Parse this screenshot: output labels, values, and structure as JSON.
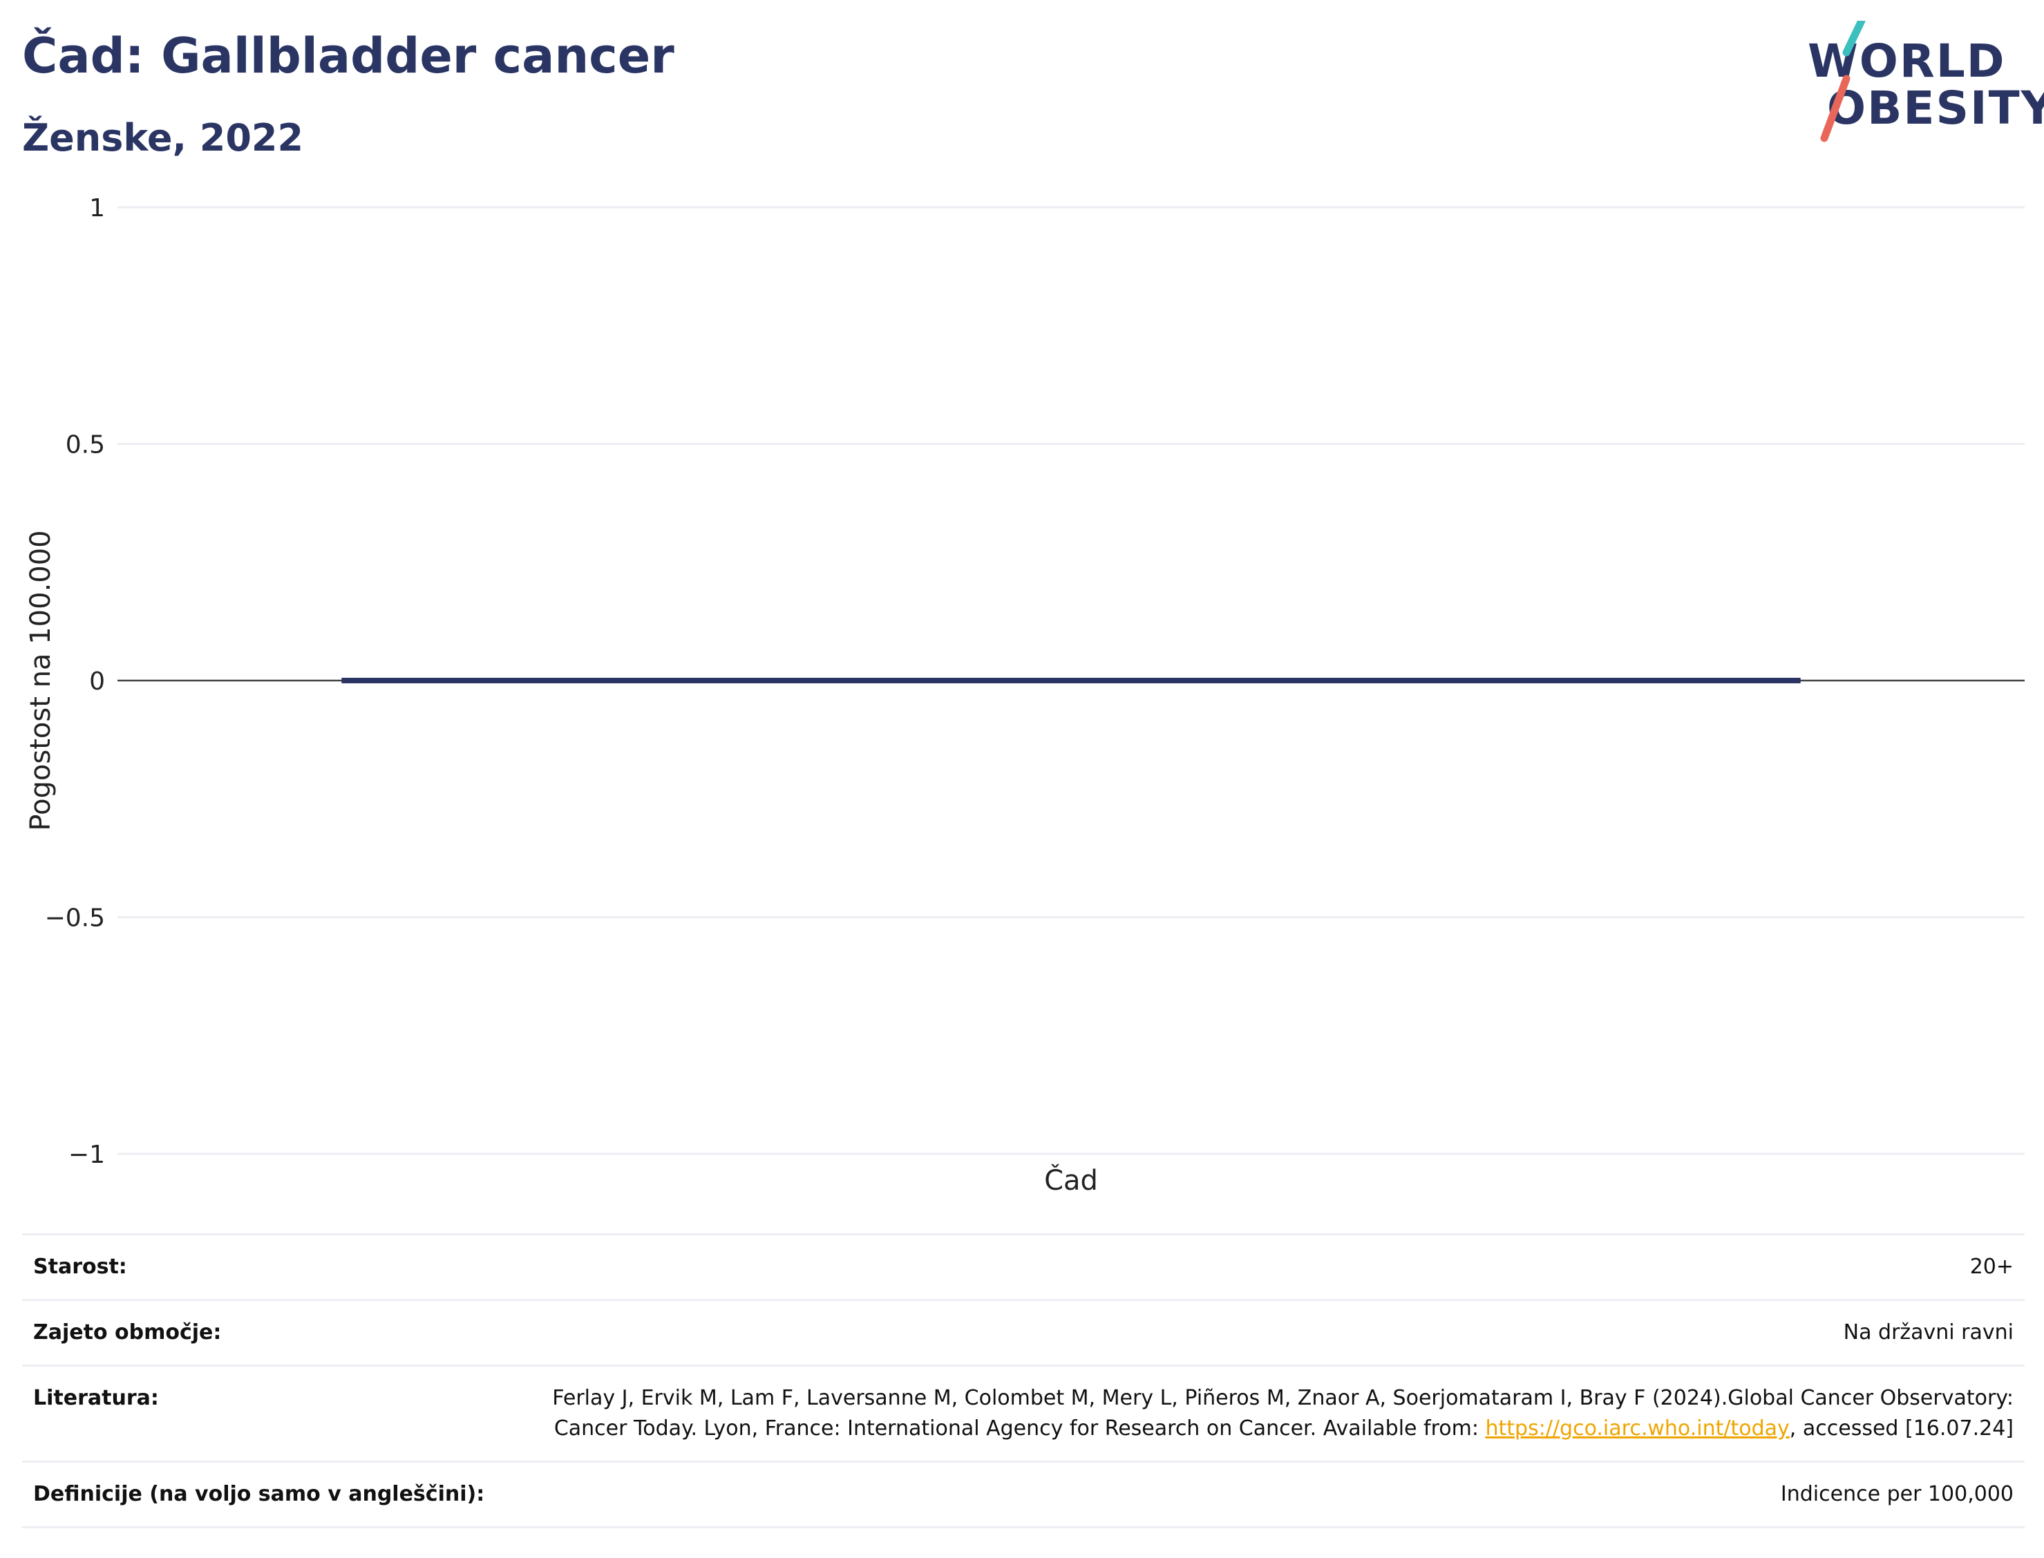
{
  "header": {
    "title": "Čad: Gallbladder cancer",
    "subtitle": "Ženske, 2022"
  },
  "logo": {
    "line1": "WORLD",
    "line2": "OBESITY",
    "colors": {
      "text": "#2a3563",
      "slash_top": "#3bbfbf",
      "slash_bottom": "#e8675a"
    }
  },
  "chart_data": {
    "type": "bar",
    "categories": [
      "Čad"
    ],
    "series": [
      {
        "values": [
          0
        ]
      }
    ],
    "ylabel": "Pogostost na 100.000",
    "xlabel": "",
    "ylim": [
      -1,
      1
    ],
    "yticks": [
      {
        "value": 1,
        "label": "1"
      },
      {
        "value": 0.5,
        "label": "0.5"
      },
      {
        "value": 0,
        "label": "0"
      },
      {
        "value": -0.5,
        "label": "−0.5"
      },
      {
        "value": -1,
        "label": "−1"
      }
    ],
    "grid": true,
    "legend": "none",
    "colors": {
      "bar": "#2a3563",
      "grid": "#eceef3",
      "zeroline": "#444444"
    }
  },
  "info": {
    "rows": [
      {
        "label": "Starost:",
        "value": "20+"
      },
      {
        "label": "Zajeto območje:",
        "value": "Na državni ravni"
      },
      {
        "label": "Literatura:",
        "value_before": "Ferlay J, Ervik M, Lam F, Laversanne M, Colombet M, Mery L, Piñeros M, Znaor A, Soerjomataram I, Bray F (2024).Global Cancer Observatory: Cancer Today. Lyon, France: International Agency for Research on Cancer. Available from: ",
        "link": "https://gco.iarc.who.int/today",
        "value_after": ", accessed [16.07.24]"
      },
      {
        "label": "Definicije (na voljo samo v angleščini):",
        "value": "Indicence per 100,000"
      }
    ]
  }
}
